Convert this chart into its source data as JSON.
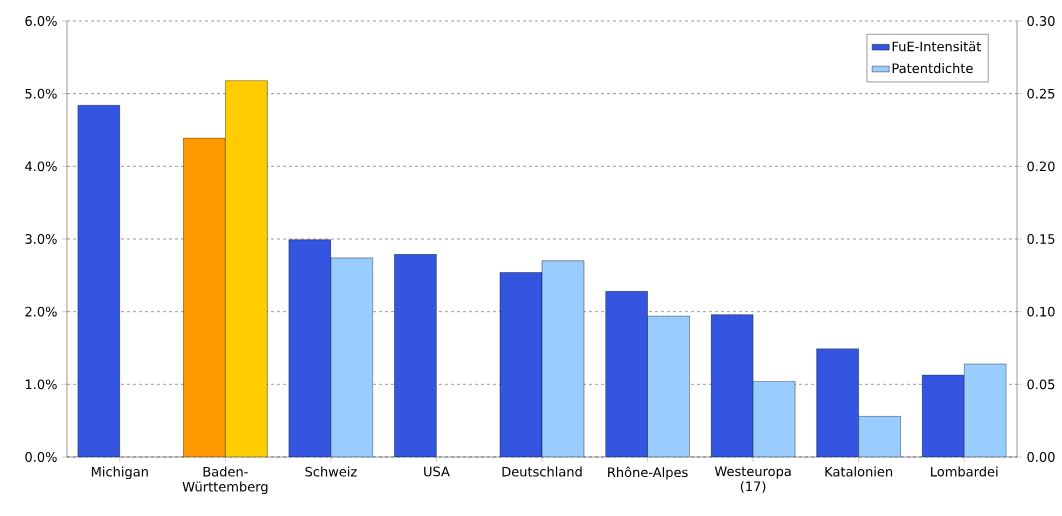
{
  "chart_data": {
    "type": "bar",
    "categories": [
      "Michigan",
      "Baden-Württemberg",
      "Schweiz",
      "USA",
      "Deutschland",
      "Rhône-Alpes",
      "Westeuropa (17)",
      "Katalonien",
      "Lombardei"
    ],
    "series": [
      {
        "name": "FuE-Intensität",
        "color": "#3355e0",
        "colors": [
          "#3355e0",
          "#ff9900",
          "#3355e0",
          "#3355e0",
          "#3355e0",
          "#3355e0",
          "#3355e0",
          "#3355e0",
          "#3355e0"
        ],
        "values": [
          4.84,
          4.39,
          2.99,
          2.79,
          2.54,
          2.28,
          1.96,
          1.49,
          1.13
        ]
      },
      {
        "name": "Patentdichte",
        "axis": "y2",
        "color": "#99ccff",
        "colors": [
          "#99ccff",
          "#ffcc00",
          "#99ccff",
          "#99ccff",
          "#99ccff",
          "#99ccff",
          "#99ccff",
          "#99ccff",
          "#99ccff"
        ],
        "values": [
          null,
          0.259,
          0.137,
          null,
          0.135,
          0.097,
          0.052,
          0.028,
          0.064
        ]
      }
    ],
    "ylim": [
      0,
      6
    ],
    "yticks": [
      {
        "value": 0,
        "label": "0.0%"
      },
      {
        "value": 1,
        "label": "1.0%"
      },
      {
        "value": 2,
        "label": "2.0%"
      },
      {
        "value": 3,
        "label": "3.0%"
      },
      {
        "value": 4,
        "label": "4.0%"
      },
      {
        "value": 5,
        "label": "5.0%"
      },
      {
        "value": 6,
        "label": "6.0%"
      }
    ],
    "y2lim": [
      0,
      0.3
    ],
    "y2ticks": [
      {
        "value": 0,
        "label": "0.00"
      },
      {
        "value": 0.05,
        "label": "0.05"
      },
      {
        "value": 0.1,
        "label": "0.10"
      },
      {
        "value": 0.15,
        "label": "0.15"
      },
      {
        "value": 0.2,
        "label": "0.20"
      },
      {
        "value": 0.25,
        "label": "0.25"
      },
      {
        "value": 0.3,
        "label": "0.30"
      }
    ],
    "grid": "y",
    "legend": "top right"
  }
}
